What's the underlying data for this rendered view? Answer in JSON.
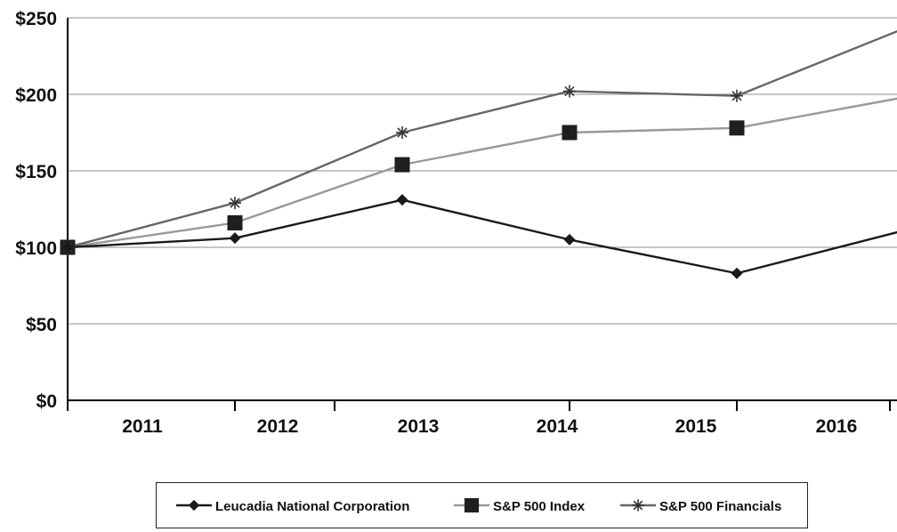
{
  "chart_data": {
    "type": "line",
    "x": [
      "2011",
      "2012",
      "2013",
      "2014",
      "2015",
      "2016"
    ],
    "yticks": [
      "$0",
      "$50",
      "$100",
      "$150",
      "$200",
      "$250"
    ],
    "ylim": [
      0,
      250
    ],
    "grid": true,
    "legend_position": "bottom",
    "series": [
      {
        "name": "Leucadia National Corporation",
        "marker": "diamond",
        "color": "#1a1a1a",
        "values": [
          100,
          106,
          131,
          105,
          83,
          111
        ]
      },
      {
        "name": "S&P 500 Index",
        "marker": "square",
        "color": "#999999",
        "values": [
          100,
          116,
          154,
          175,
          178,
          198
        ]
      },
      {
        "name": "S&P 500 Financials",
        "marker": "asterisk",
        "color": "#666666",
        "values": [
          100,
          129,
          175,
          202,
          199,
          243
        ]
      }
    ]
  }
}
